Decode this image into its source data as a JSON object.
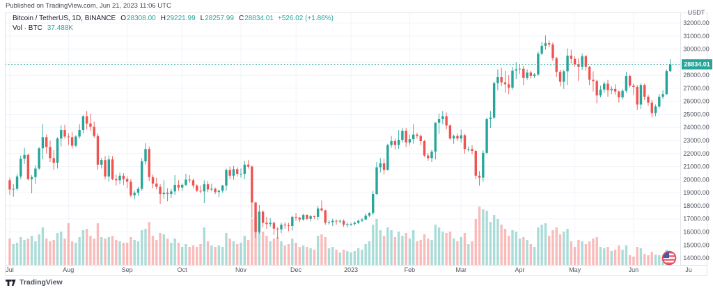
{
  "publish_line": "Published on TradingView.com, Jun 21, 2023 11:06 UTC",
  "attribution": {
    "logo_icon": "tradingview-logo-icon",
    "text": "TradingView"
  },
  "legend": {
    "symbol": "Bitcoin / TetherUS, 1D, BINANCE",
    "o_label": "O",
    "o_value": "28308.00",
    "h_label": "H",
    "h_value": "29221.99",
    "l_label": "L",
    "l_value": "28257.99",
    "c_label": "C",
    "c_value": "28834.01",
    "change": "+526.02 (+1.86%)",
    "vol_label": "Vol · BTC",
    "vol_value": "37.488K"
  },
  "price_axis": {
    "currency_label": "USDT",
    "tick_labels": [
      "32000.00",
      "31000.00",
      "30000.00",
      "29000.00",
      "28000.00",
      "27000.00",
      "26000.00",
      "25000.00",
      "24000.00",
      "23000.00",
      "22000.00",
      "21000.00",
      "20000.00",
      "19000.00",
      "18000.00",
      "17000.00",
      "16000.00",
      "15000.00",
      "14000.00"
    ],
    "tick_values": [
      32000,
      31000,
      30000,
      29000,
      28000,
      27000,
      26000,
      25000,
      24000,
      23000,
      22000,
      21000,
      20000,
      19000,
      18000,
      17000,
      16000,
      15000,
      14000
    ],
    "price_label": "28834.01",
    "price_value": 28834.01
  },
  "time_axis": {
    "ticks": [
      {
        "label": "Jul",
        "bar": 0
      },
      {
        "label": "Aug",
        "bar": 16
      },
      {
        "label": "Sep",
        "bar": 32
      },
      {
        "label": "Oct",
        "bar": 47
      },
      {
        "label": "Nov",
        "bar": 63
      },
      {
        "label": "Dec",
        "bar": 78
      },
      {
        "label": "2023",
        "bar": 93
      },
      {
        "label": "Feb",
        "bar": 109
      },
      {
        "label": "Mar",
        "bar": 123
      },
      {
        "label": "Apr",
        "bar": 139
      },
      {
        "label": "May",
        "bar": 154
      },
      {
        "label": "Jun",
        "bar": 170
      },
      {
        "label": "Ju",
        "bar": 185
      }
    ]
  },
  "colors": {
    "up": "#26a69a",
    "down": "#ef5350",
    "vol_up": "#26a69a63",
    "vol_down": "#ef535063",
    "grid": "#f0f3fa",
    "border": "#e0e3eb",
    "axis_text": "#50535e",
    "text_dark": "#131722",
    "teal_text": "#26a69a",
    "price_line": "#26a69a",
    "badge_bg": "#26a69a",
    "badge_text": "#ffffff",
    "background": "#ffffff",
    "flag_ring": "#e8435a",
    "flag_red": "#ee5b6a",
    "flag_blue": "#3d5da8",
    "flag_white": "#ffffff"
  },
  "chart_data": {
    "type": "candlestick+volume",
    "title": "Bitcoin / TetherUS, 1D, BINANCE",
    "symbol": "BTC/USDT",
    "exchange": "BINANCE",
    "interval": "1D",
    "x_range": [
      "2022-07-01",
      "2023-06-21"
    ],
    "y_axis": {
      "currency": "USDT",
      "min": 13500,
      "max": 32800,
      "tick_step": 1000
    },
    "grid": true,
    "legend_position": "top-left",
    "current_bar": {
      "open": 28308.0,
      "high": 29221.99,
      "low": 28257.99,
      "close": 28834.01,
      "change": 526.02,
      "change_pct": 1.86,
      "volume_k_btc": 37.488
    },
    "bar_interval_days": 2,
    "columns": [
      "open",
      "high",
      "low",
      "close",
      "volume_k"
    ],
    "candles": [
      [
        19950,
        20150,
        18850,
        19250,
        190
      ],
      [
        19250,
        19650,
        18700,
        19300,
        150
      ],
      [
        19300,
        20450,
        19150,
        20250,
        160
      ],
      [
        20250,
        21850,
        20050,
        21600,
        200
      ],
      [
        21600,
        22450,
        21200,
        21900,
        180
      ],
      [
        21900,
        22000,
        19950,
        20050,
        190
      ],
      [
        20050,
        20350,
        18950,
        20200,
        210
      ],
      [
        20200,
        21100,
        19650,
        20850,
        170
      ],
      [
        20850,
        22500,
        20750,
        22400,
        220
      ],
      [
        22400,
        24250,
        21550,
        23250,
        270
      ],
      [
        23250,
        23450,
        22000,
        22500,
        190
      ],
      [
        22500,
        23000,
        21350,
        21650,
        170
      ],
      [
        21650,
        22250,
        20750,
        21300,
        180
      ],
      [
        21300,
        23250,
        20850,
        23150,
        230
      ],
      [
        23150,
        24150,
        22550,
        23800,
        240
      ],
      [
        23800,
        24200,
        23150,
        23300,
        190
      ],
      [
        23300,
        23550,
        22650,
        23250,
        300
      ],
      [
        23250,
        23650,
        22400,
        22600,
        170
      ],
      [
        22600,
        23400,
        22500,
        23300,
        160
      ],
      [
        23300,
        24250,
        23150,
        23800,
        200
      ],
      [
        23800,
        24950,
        23550,
        24850,
        250
      ],
      [
        24850,
        25250,
        23850,
        24300,
        260
      ],
      [
        24300,
        25050,
        23750,
        24050,
        210
      ],
      [
        24050,
        24450,
        23200,
        23350,
        190
      ],
      [
        23350,
        23550,
        20750,
        21150,
        300
      ],
      [
        21150,
        21650,
        20850,
        21500,
        200
      ],
      [
        21500,
        21800,
        20050,
        20250,
        190
      ],
      [
        20250,
        21850,
        19850,
        21550,
        200
      ],
      [
        21550,
        21800,
        19950,
        20050,
        210
      ],
      [
        20050,
        20400,
        19550,
        19950,
        180
      ],
      [
        19950,
        20550,
        19650,
        20300,
        170
      ],
      [
        20300,
        20500,
        19600,
        20050,
        160
      ],
      [
        20050,
        20250,
        19350,
        19850,
        160
      ],
      [
        19850,
        20050,
        18650,
        18800,
        200
      ],
      [
        18800,
        19150,
        18500,
        19000,
        180
      ],
      [
        19000,
        19450,
        18750,
        19300,
        170
      ],
      [
        19300,
        21650,
        19150,
        21400,
        250
      ],
      [
        21400,
        22800,
        21150,
        22350,
        260
      ],
      [
        22350,
        22550,
        19900,
        20200,
        310
      ],
      [
        20200,
        20400,
        19350,
        19700,
        210
      ],
      [
        19700,
        20150,
        19250,
        19450,
        180
      ],
      [
        19450,
        19650,
        18150,
        18900,
        230
      ],
      [
        18900,
        19950,
        18550,
        19000,
        220
      ],
      [
        19000,
        19350,
        18350,
        18900,
        190
      ],
      [
        18900,
        19300,
        18600,
        19100,
        160
      ],
      [
        19100,
        20350,
        18850,
        19600,
        190
      ],
      [
        19600,
        19950,
        19150,
        19400,
        160
      ],
      [
        19400,
        19700,
        19150,
        19600,
        130
      ],
      [
        19600,
        20450,
        19500,
        20000,
        150
      ],
      [
        20000,
        20350,
        19750,
        19950,
        130
      ],
      [
        19950,
        20100,
        19350,
        19550,
        140
      ],
      [
        19550,
        19650,
        19050,
        19150,
        130
      ],
      [
        19150,
        19550,
        18950,
        19100,
        150
      ],
      [
        19100,
        19950,
        18200,
        19650,
        270
      ],
      [
        19650,
        19900,
        19050,
        19250,
        170
      ],
      [
        19250,
        19700,
        19100,
        19300,
        140
      ],
      [
        19300,
        19400,
        18900,
        19050,
        130
      ],
      [
        19050,
        19250,
        18650,
        19150,
        140
      ],
      [
        19150,
        19600,
        19000,
        19550,
        130
      ],
      [
        19550,
        20850,
        19150,
        20750,
        230
      ],
      [
        20750,
        21000,
        20050,
        20300,
        190
      ],
      [
        20300,
        21050,
        20000,
        20800,
        170
      ],
      [
        20800,
        20950,
        20250,
        20450,
        150
      ],
      [
        20450,
        20850,
        20150,
        20450,
        160
      ],
      [
        20450,
        21450,
        20050,
        21150,
        210
      ],
      [
        21150,
        21500,
        20850,
        21000,
        180
      ],
      [
        21000,
        21100,
        17050,
        18250,
        330
      ],
      [
        18250,
        18300,
        15550,
        16000,
        360
      ],
      [
        16000,
        18050,
        15850,
        17550,
        300
      ],
      [
        17550,
        17650,
        16350,
        16700,
        240
      ],
      [
        16700,
        17150,
        16250,
        16600,
        210
      ],
      [
        16600,
        17050,
        16400,
        16700,
        170
      ],
      [
        16700,
        16800,
        15750,
        16250,
        190
      ],
      [
        16250,
        16350,
        15480,
        16200,
        200
      ],
      [
        16200,
        16700,
        15900,
        16550,
        170
      ],
      [
        16550,
        16750,
        16250,
        16500,
        140
      ],
      [
        16500,
        16700,
        16050,
        16450,
        150
      ],
      [
        16450,
        17250,
        16100,
        17150,
        190
      ],
      [
        17150,
        17450,
        16850,
        17100,
        160
      ],
      [
        17100,
        17150,
        16750,
        16950,
        130
      ],
      [
        16950,
        17400,
        16850,
        17300,
        140
      ],
      [
        17300,
        17350,
        16900,
        17000,
        130
      ],
      [
        17000,
        17300,
        16800,
        17200,
        120
      ],
      [
        17200,
        17250,
        17000,
        17150,
        110
      ],
      [
        17150,
        18000,
        16900,
        17800,
        210
      ],
      [
        17800,
        18400,
        17550,
        17650,
        220
      ],
      [
        17650,
        17700,
        16550,
        16700,
        200
      ],
      [
        16700,
        16900,
        16550,
        16750,
        120
      ],
      [
        16750,
        17000,
        16450,
        16850,
        130
      ],
      [
        16850,
        16950,
        16550,
        16800,
        110
      ],
      [
        16800,
        16950,
        16650,
        16850,
        90
      ],
      [
        16850,
        16950,
        16400,
        16550,
        110
      ],
      [
        16550,
        16750,
        16350,
        16600,
        100
      ],
      [
        16600,
        16700,
        16450,
        16600,
        90
      ],
      [
        16600,
        16800,
        16500,
        16700,
        100
      ],
      [
        16700,
        16950,
        16600,
        16850,
        120
      ],
      [
        16850,
        17050,
        16750,
        16950,
        110
      ],
      [
        16950,
        17400,
        16900,
        17250,
        150
      ],
      [
        17250,
        17500,
        17150,
        17450,
        170
      ],
      [
        17450,
        19150,
        17300,
        18900,
        290
      ],
      [
        18900,
        21350,
        18850,
        20950,
        330
      ],
      [
        20950,
        21650,
        20550,
        21250,
        250
      ],
      [
        21250,
        21600,
        20400,
        20750,
        210
      ],
      [
        20750,
        22750,
        20700,
        22650,
        270
      ],
      [
        22650,
        23350,
        22450,
        22950,
        250
      ],
      [
        22950,
        23150,
        22300,
        22650,
        200
      ],
      [
        22650,
        23800,
        22350,
        23050,
        240
      ],
      [
        23050,
        23950,
        22850,
        23750,
        210
      ],
      [
        23750,
        23960,
        22500,
        22850,
        230
      ],
      [
        22850,
        23450,
        22650,
        23100,
        190
      ],
      [
        23100,
        24250,
        22750,
        23450,
        250
      ],
      [
        23450,
        23600,
        23150,
        23350,
        170
      ],
      [
        23350,
        23450,
        22650,
        22950,
        180
      ],
      [
        22950,
        23050,
        21750,
        21850,
        220
      ],
      [
        21850,
        22050,
        21450,
        21650,
        190
      ],
      [
        21650,
        22300,
        21350,
        22150,
        180
      ],
      [
        22150,
        24400,
        21550,
        24350,
        290
      ],
      [
        24350,
        25050,
        23500,
        24650,
        270
      ],
      [
        24650,
        25250,
        24250,
        24850,
        240
      ],
      [
        24850,
        25150,
        23850,
        24150,
        230
      ],
      [
        24150,
        24250,
        23050,
        23150,
        240
      ],
      [
        23150,
        23450,
        22750,
        23350,
        190
      ],
      [
        23350,
        23550,
        22950,
        23150,
        170
      ],
      [
        23150,
        23850,
        22850,
        23400,
        200
      ],
      [
        23400,
        23500,
        21980,
        22350,
        230
      ],
      [
        22350,
        22550,
        22150,
        22350,
        150
      ],
      [
        22350,
        22650,
        21950,
        22200,
        170
      ],
      [
        22200,
        22250,
        20050,
        20300,
        330
      ],
      [
        20300,
        20650,
        19550,
        20150,
        420
      ],
      [
        20150,
        22250,
        19850,
        22050,
        400
      ],
      [
        22050,
        24750,
        21950,
        24650,
        390
      ],
      [
        24650,
        25250,
        23950,
        24750,
        310
      ],
      [
        24750,
        27500,
        24650,
        27400,
        360
      ],
      [
        27400,
        28450,
        26850,
        27850,
        330
      ],
      [
        27850,
        28550,
        27150,
        27450,
        290
      ],
      [
        27450,
        28350,
        26650,
        27300,
        260
      ],
      [
        27300,
        28000,
        26550,
        27050,
        210
      ],
      [
        27050,
        28650,
        26900,
        28350,
        250
      ],
      [
        28350,
        29000,
        27700,
        28450,
        240
      ],
      [
        28450,
        28800,
        28100,
        28500,
        190
      ],
      [
        28500,
        28700,
        27250,
        27800,
        200
      ],
      [
        27800,
        28450,
        27650,
        28200,
        180
      ],
      [
        28200,
        28350,
        27750,
        27950,
        150
      ],
      [
        27950,
        28150,
        27800,
        28050,
        130
      ],
      [
        28050,
        29800,
        27950,
        29650,
        270
      ],
      [
        29650,
        30550,
        29550,
        30250,
        290
      ],
      [
        30250,
        31050,
        29950,
        30450,
        300
      ],
      [
        30450,
        30650,
        30150,
        30350,
        210
      ],
      [
        30350,
        30500,
        29100,
        29300,
        250
      ],
      [
        29300,
        29400,
        27850,
        28250,
        270
      ],
      [
        28250,
        28400,
        27150,
        27500,
        220
      ],
      [
        27500,
        28400,
        26950,
        28300,
        240
      ],
      [
        28300,
        30050,
        27250,
        29500,
        260
      ],
      [
        29500,
        29950,
        28900,
        29250,
        170
      ],
      [
        29250,
        29450,
        28650,
        28850,
        130
      ],
      [
        28850,
        29300,
        27550,
        28650,
        180
      ],
      [
        28650,
        29650,
        28400,
        29450,
        170
      ],
      [
        29450,
        29550,
        28350,
        28650,
        150
      ],
      [
        28650,
        28700,
        27250,
        27650,
        170
      ],
      [
        27650,
        28300,
        26750,
        27550,
        190
      ],
      [
        27550,
        27650,
        25850,
        26450,
        200
      ],
      [
        26450,
        27200,
        26300,
        26900,
        130
      ],
      [
        26900,
        27500,
        26650,
        27350,
        120
      ],
      [
        27350,
        27650,
        26350,
        26850,
        130
      ],
      [
        26850,
        27150,
        26550,
        26950,
        100
      ],
      [
        26950,
        27300,
        26500,
        26750,
        110
      ],
      [
        26750,
        26850,
        25900,
        26300,
        140
      ],
      [
        26300,
        26950,
        26150,
        26800,
        110
      ],
      [
        26800,
        28250,
        26650,
        27950,
        140
      ],
      [
        27950,
        28050,
        27050,
        27200,
        70
      ],
      [
        27200,
        27350,
        26500,
        27100,
        60
      ],
      [
        27100,
        27250,
        25350,
        25750,
        130
      ],
      [
        25750,
        27400,
        25400,
        27250,
        120
      ],
      [
        27250,
        27350,
        26100,
        26350,
        80
      ],
      [
        26350,
        26500,
        25650,
        25900,
        70
      ],
      [
        25900,
        26100,
        24800,
        25100,
        95
      ],
      [
        25100,
        25750,
        24850,
        25600,
        75
      ],
      [
        25600,
        26550,
        25450,
        26350,
        70
      ],
      [
        26350,
        26850,
        26200,
        26550,
        55
      ],
      [
        26550,
        28450,
        26500,
        28320,
        110
      ],
      [
        28308,
        29221.99,
        28257.99,
        28834.01,
        37.488
      ]
    ]
  }
}
